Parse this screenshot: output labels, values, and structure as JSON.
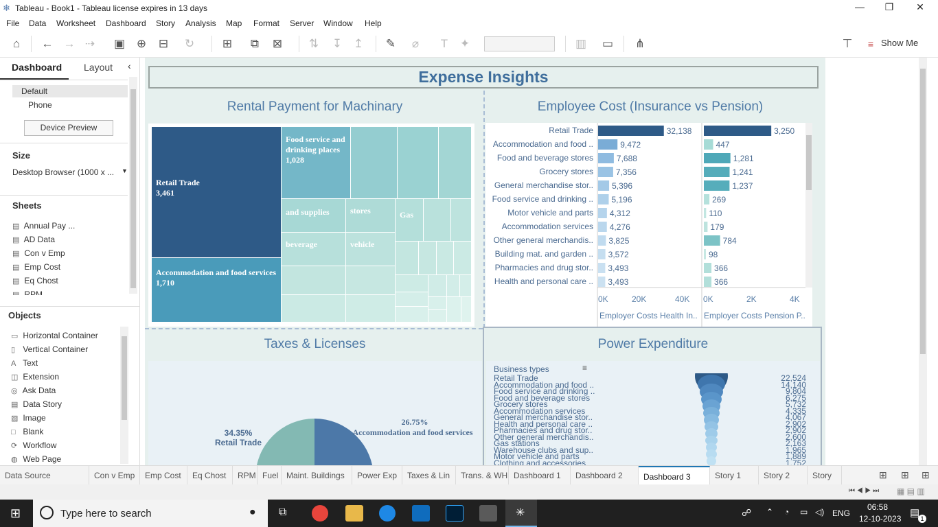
{
  "window": {
    "title": "Tableau - Book1 - Tableau license expires in 13 days"
  },
  "menu": [
    "File",
    "Data",
    "Worksheet",
    "Dashboard",
    "Story",
    "Analysis",
    "Map",
    "Format",
    "Server",
    "Window",
    "Help"
  ],
  "toolbar": {
    "show_me": "Show Me"
  },
  "sidebar": {
    "tabs": [
      "Dashboard",
      "Layout"
    ],
    "devices": [
      "Default",
      "Phone"
    ],
    "device_preview": "Device Preview",
    "size_heading": "Size",
    "size_value": "Desktop Browser (1000 x ...",
    "sheets_heading": "Sheets",
    "sheets": [
      "Annual Pay ...",
      "AD Data",
      "Con v Emp",
      "Emp Cost",
      "Eq Chost",
      "RPM"
    ],
    "objects_heading": "Objects",
    "objects": [
      {
        "label": "Horizontal Container",
        "icon": "horizontal-container-icon"
      },
      {
        "label": "Vertical Container",
        "icon": "vertical-container-icon"
      },
      {
        "label": "Text",
        "icon": "text-icon"
      },
      {
        "label": "Extension",
        "icon": "extension-icon"
      },
      {
        "label": "Ask Data",
        "icon": "ask-data-icon"
      },
      {
        "label": "Data Story",
        "icon": "data-story-icon"
      },
      {
        "label": "Image",
        "icon": "image-icon"
      },
      {
        "label": "Blank",
        "icon": "blank-icon"
      },
      {
        "label": "Workflow",
        "icon": "workflow-icon"
      },
      {
        "label": "Web Page",
        "icon": "web-page-icon"
      }
    ]
  },
  "dashboard": {
    "title": "Expense Insights",
    "rental": {
      "title": "Rental Payment for Machinary",
      "blocks": [
        {
          "label": "Retail Trade",
          "value": "3,461"
        },
        {
          "label": "Food service and drinking places",
          "value": "1,028"
        },
        {
          "label": "Accommodation and food services",
          "value": "1,710"
        }
      ],
      "small_labels": [
        "and supplies",
        "stores",
        "Gas",
        "beverage",
        "vehicle"
      ]
    },
    "emp": {
      "title": "Employee Cost (Insurance vs Pension)",
      "axis1": [
        "0K",
        "20K",
        "40K"
      ],
      "axis2": [
        "0K",
        "2K",
        "4K"
      ],
      "axis1_title": "Employer Costs Health In..",
      "axis2_title": "Employer Costs Pension P.."
    },
    "taxes": {
      "title": "Taxes & Licenses",
      "slice1": {
        "pct": "34.35%",
        "label": "Retail Trade"
      },
      "slice2": {
        "pct": "26.75%",
        "label": "Accommodation and food services"
      }
    },
    "power": {
      "title": "Power Expenditure",
      "header": "Business types",
      "rows": [
        {
          "label": "Retail Trade",
          "value": "22,524"
        },
        {
          "label": "Accommodation and food ..",
          "value": "14,140"
        },
        {
          "label": "Food service and drinking ..",
          "value": "9,804"
        },
        {
          "label": "Food and beverage stores",
          "value": "6,275"
        },
        {
          "label": "Grocery stores",
          "value": "5,732"
        },
        {
          "label": "Accommodation services",
          "value": "4,335"
        },
        {
          "label": "General merchandise stor..",
          "value": "4,067"
        },
        {
          "label": "Health and personal care ..",
          "value": "2,902"
        },
        {
          "label": "Pharmacies and drug stor..",
          "value": "2,902"
        },
        {
          "label": "Other general merchandis..",
          "value": "2,600"
        },
        {
          "label": "Gas stations",
          "value": "2,163"
        },
        {
          "label": "Warehouse clubs and sup..",
          "value": "1,965"
        },
        {
          "label": "Motor vehicle and parts",
          "value": "1,889"
        },
        {
          "label": "Clothing and accessories",
          "value": "1,752"
        }
      ]
    }
  },
  "chart_data": {
    "type": "bar",
    "categories": [
      "Retail Trade",
      "Accommodation and food ..",
      "Food and beverage stores",
      "Grocery stores",
      "General merchandise stor..",
      "Food service and drinking ..",
      "Motor vehicle and parts",
      "Accommodation services",
      "Other general merchandis..",
      "Building mat. and garden ..",
      "Pharmacies and drug stor..",
      "Health and personal care .."
    ],
    "series": [
      {
        "name": "Employer Costs Health In..",
        "values": [
          32138,
          9472,
          7688,
          7356,
          5396,
          5196,
          4312,
          4276,
          3825,
          3572,
          3493,
          3493
        ],
        "labels": [
          "32,138",
          "9,472",
          "7,688",
          "7,356",
          "5,396",
          "5,196",
          "4,312",
          "4,276",
          "3,825",
          "3,572",
          "3,493",
          "3,493"
        ]
      },
      {
        "name": "Employer Costs Pension P..",
        "values": [
          3250,
          447,
          1281,
          1241,
          1237,
          269,
          110,
          179,
          784,
          98,
          366,
          366
        ],
        "labels": [
          "3,250",
          "447",
          "1,281",
          "1,241",
          "1,237",
          "269",
          "110",
          "179",
          "784",
          "98",
          "366",
          "366"
        ]
      }
    ],
    "xlim1": [
      0,
      48000
    ],
    "xlim2": [
      0,
      4800
    ]
  },
  "tabs": [
    "Data Source",
    "Con v Emp",
    "Emp Cost",
    "Eq Chost",
    "RPM",
    "Fuel",
    "Maint. Buildings",
    "Power Exp",
    "Taxes & Lin",
    "Trans. & WH",
    "Dashboard 1",
    "Dashboard 2",
    "Dashboard 3",
    "Story 1",
    "Story 2",
    "Story"
  ],
  "active_tab": "Dashboard 3",
  "taskbar": {
    "search_placeholder": "Type here to search",
    "lang": "ENG",
    "time": "06:58",
    "date": "12-10-2023",
    "notif": "1"
  }
}
